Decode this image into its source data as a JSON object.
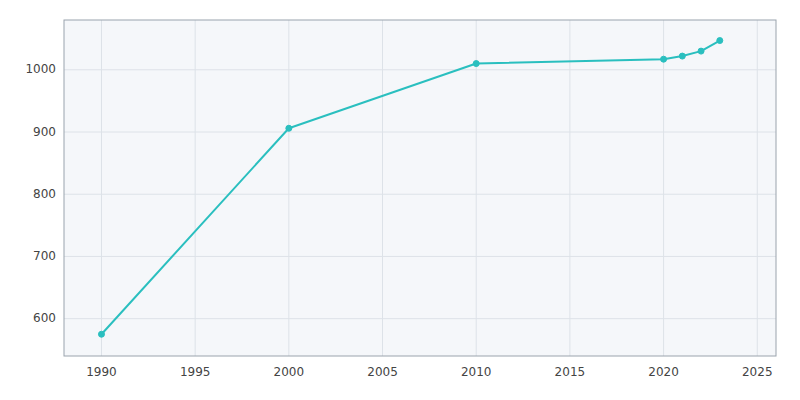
{
  "chart_data": {
    "type": "line",
    "x": [
      1990,
      2000,
      2010,
      2020,
      2021,
      2022,
      2023
    ],
    "values": [
      575,
      906,
      1010,
      1017,
      1022,
      1030,
      1047
    ],
    "color": "#2abfbf",
    "marker": "circle",
    "xlim": [
      1988,
      2026
    ],
    "ylim": [
      540,
      1080
    ],
    "xticks": [
      1990,
      1995,
      2000,
      2005,
      2010,
      2015,
      2020,
      2025
    ],
    "yticks": [
      600,
      700,
      800,
      900,
      1000
    ],
    "grid": true
  }
}
